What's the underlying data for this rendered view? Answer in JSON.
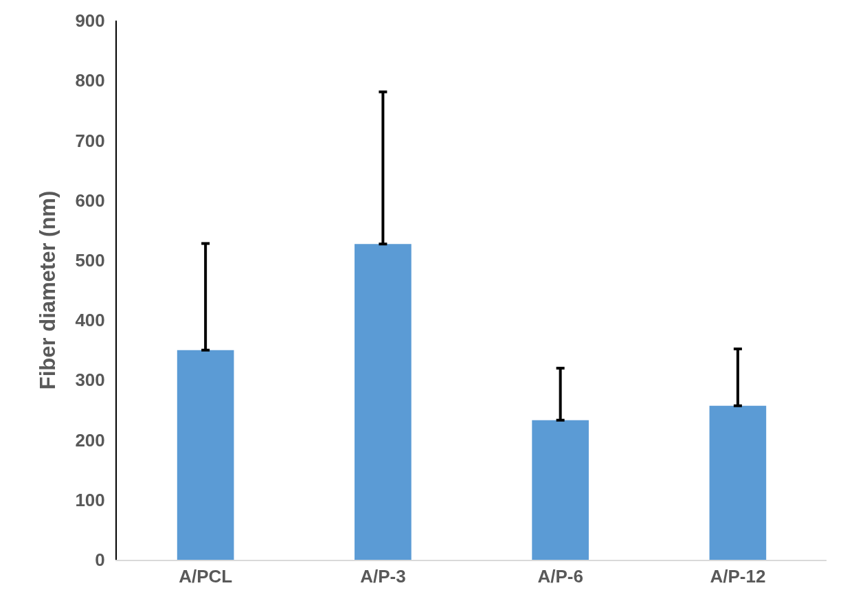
{
  "chart_data": {
    "type": "bar",
    "ylabel": "Fiber diameter (nm)",
    "categories": [
      "A/PCL",
      "A/P-3",
      "A/P-6",
      "A/P-12"
    ],
    "values": [
      350,
      527,
      233,
      257
    ],
    "errors": [
      [
        350,
        528
      ],
      [
        527,
        781
      ],
      [
        233,
        320
      ],
      [
        257,
        352
      ]
    ],
    "color": "#5b9bd5",
    "ylim": [
      0,
      900
    ],
    "yticks": [
      0,
      100,
      200,
      300,
      400,
      500,
      600,
      700,
      800,
      900
    ],
    "grid": false
  }
}
